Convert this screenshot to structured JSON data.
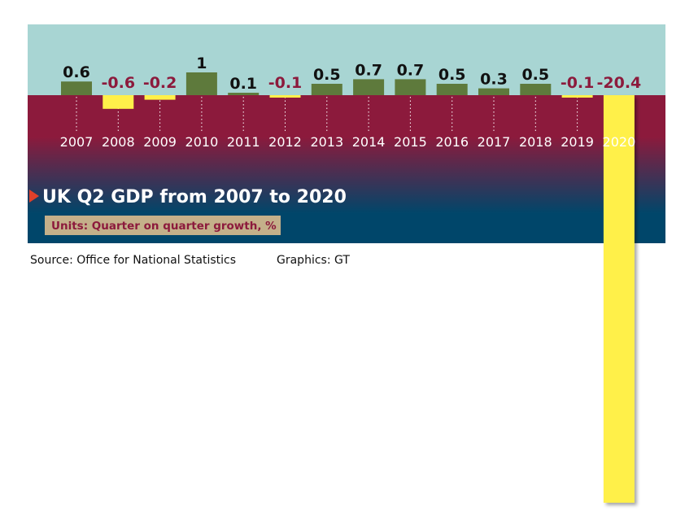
{
  "chart_data": {
    "type": "bar",
    "title": "UK Q2 GDP from 2007 to 2020",
    "subtitle": "Units: Quarter on quarter growth, %",
    "categories": [
      "2007",
      "2008",
      "2009",
      "2010",
      "2011",
      "2012",
      "2013",
      "2014",
      "2015",
      "2016",
      "2017",
      "2018",
      "2019",
      "2020"
    ],
    "values": [
      0.6,
      -0.6,
      -0.2,
      1,
      0.1,
      -0.1,
      0.5,
      0.7,
      0.7,
      0.5,
      0.3,
      0.5,
      -0.1,
      -20.4
    ],
    "value_labels": [
      "0.6",
      "-0.6",
      "-0.2",
      "1",
      "0.1",
      "-0.1",
      "0.5",
      "0.7",
      "0.7",
      "0.5",
      "0.3",
      "0.5",
      "-0.1",
      "-20.4"
    ],
    "xlabel": "",
    "ylabel": "",
    "grid": false,
    "legend": "none",
    "colors": {
      "positive_bar": "#5e7a3c",
      "negative_bar": "#fff04a",
      "positive_label": "#111111",
      "negative_label": "#8c1a3c",
      "top_band": "#a8d5d3",
      "gradient_top": "#8c1a3c",
      "gradient_bottom": "#00466a",
      "units_box": "#c4b08a",
      "title_marker": "#e0402a"
    }
  },
  "footer": {
    "source": "Source: Office for National Statistics",
    "graphics": "Graphics: GT"
  }
}
